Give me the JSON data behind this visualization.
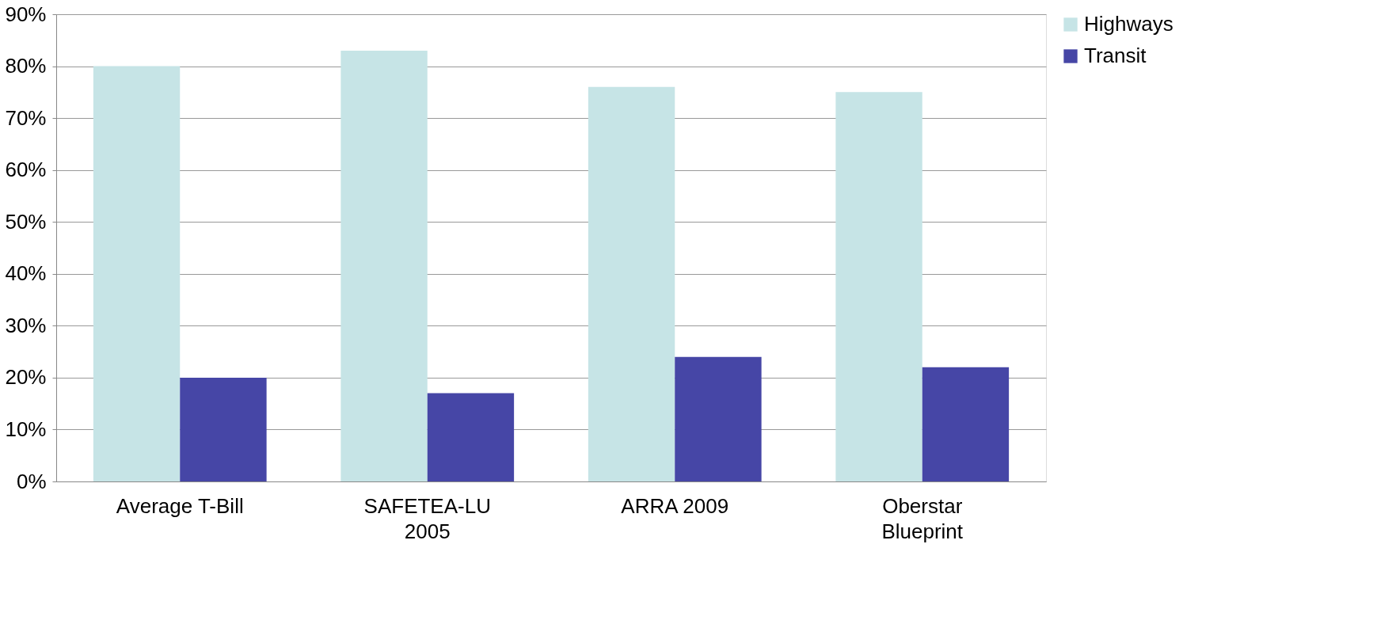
{
  "chart_data": {
    "type": "bar",
    "categories": [
      "Average T-Bill",
      "SAFETEA-LU\n2005",
      "ARRA 2009",
      "Oberstar\nBlueprint"
    ],
    "series": [
      {
        "name": "Highways",
        "color": "#c6e4e6",
        "values": [
          80,
          83,
          76,
          75
        ]
      },
      {
        "name": "Transit",
        "color": "#4646a6",
        "values": [
          20,
          17,
          24,
          22
        ]
      }
    ],
    "ylim": [
      0,
      90
    ],
    "yticks": [
      {
        "value": 0,
        "label": "0%"
      },
      {
        "value": 10,
        "label": "10%"
      },
      {
        "value": 20,
        "label": "20%"
      },
      {
        "value": 30,
        "label": "30%"
      },
      {
        "value": 40,
        "label": "40%"
      },
      {
        "value": 50,
        "label": "50%"
      },
      {
        "value": 60,
        "label": "60%"
      },
      {
        "value": 70,
        "label": "70%"
      },
      {
        "value": 80,
        "label": "80%"
      },
      {
        "value": 90,
        "label": "90%"
      }
    ],
    "grid": "y",
    "legend": "right"
  }
}
